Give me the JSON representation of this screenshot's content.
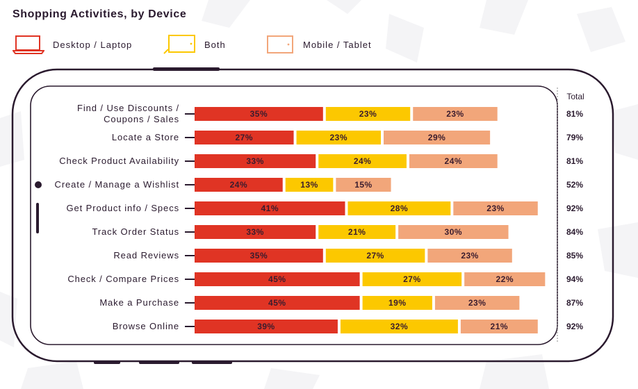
{
  "title": "Shopping Activities, by Device",
  "legend": [
    {
      "name": "Desktop / Laptop",
      "icon": "laptop-icon",
      "color": "#e03424"
    },
    {
      "name": "Both",
      "icon": "tablet-icon",
      "color": "#fcc800"
    },
    {
      "name": "Mobile / Tablet",
      "icon": "tablet-icon",
      "color": "#f2a67a"
    }
  ],
  "chart_data": {
    "type": "bar",
    "orientation": "horizontal",
    "stacked": true,
    "total_label": "Total",
    "categories": [
      "Find / Use Discounts / Coupons / Sales",
      "Locate a Store",
      "Check Product Availability",
      "Create / Manage a Wishlist",
      "Get Product info / Specs",
      "Track Order Status",
      "Read Reviews",
      "Check / Compare Prices",
      "Make a Purchase",
      "Browse Online"
    ],
    "series": [
      {
        "name": "Desktop / Laptop",
        "color": "#e03424",
        "values": [
          35,
          27,
          33,
          24,
          41,
          33,
          35,
          45,
          45,
          39
        ]
      },
      {
        "name": "Both",
        "color": "#fcc800",
        "values": [
          23,
          23,
          24,
          13,
          28,
          21,
          27,
          27,
          19,
          32
        ]
      },
      {
        "name": "Mobile / Tablet",
        "color": "#f2a67a",
        "values": [
          23,
          29,
          24,
          15,
          23,
          30,
          23,
          22,
          23,
          21
        ]
      }
    ],
    "totals": [
      81,
      79,
      81,
      52,
      92,
      84,
      85,
      94,
      87,
      92
    ],
    "value_suffix": "%"
  }
}
